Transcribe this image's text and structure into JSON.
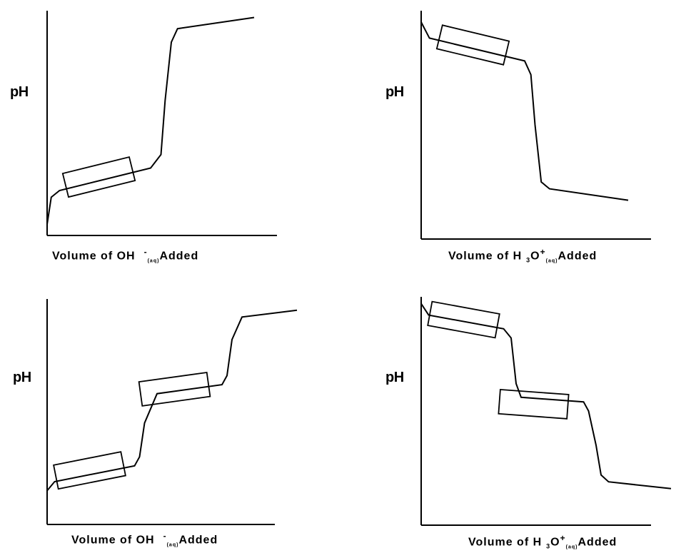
{
  "chart_data": [
    {
      "type": "line",
      "ylabel": "pH",
      "xlabel": {
        "main": "Volume of OH",
        "charge": "-",
        "state": "(aq)",
        "tail": "Added"
      },
      "series": [
        {
          "x": [
            0,
            0.02,
            0.06,
            0.5,
            0.55,
            0.57,
            0.6,
            0.63,
            1.0
          ],
          "y": [
            0.05,
            0.17,
            0.2,
            0.3,
            0.36,
            0.6,
            0.86,
            0.92,
            0.97
          ]
        }
      ],
      "buffer_regions": [
        {
          "x_center": 0.25,
          "y_center": 0.26
        }
      ]
    },
    {
      "type": "line",
      "ylabel": "pH",
      "xlabel": {
        "main": "Volume of H",
        "sub": "3",
        "o": "O",
        "charge": "+",
        "state": "(aq)",
        "tail": "Added"
      },
      "series": [
        {
          "x": [
            0,
            0.04,
            0.5,
            0.53,
            0.55,
            0.58,
            0.62,
            1.0
          ],
          "y": [
            0.95,
            0.88,
            0.78,
            0.72,
            0.5,
            0.25,
            0.22,
            0.17
          ]
        }
      ],
      "buffer_regions": [
        {
          "x_center": 0.25,
          "y_center": 0.85
        }
      ]
    },
    {
      "type": "line",
      "ylabel": "pH",
      "xlabel": {
        "main": "Volume of OH",
        "charge": "-",
        "state": "(aq)",
        "tail": "Added"
      },
      "series": [
        {
          "x": [
            0,
            0.03,
            0.35,
            0.37,
            0.39,
            0.44,
            0.7,
            0.72,
            0.74,
            0.78,
            1.0
          ],
          "y": [
            0.15,
            0.19,
            0.26,
            0.3,
            0.45,
            0.58,
            0.62,
            0.66,
            0.82,
            0.92,
            0.95
          ]
        }
      ],
      "buffer_regions": [
        {
          "x_center": 0.17,
          "y_center": 0.24
        },
        {
          "x_center": 0.51,
          "y_center": 0.6
        }
      ]
    },
    {
      "type": "line",
      "ylabel": "pH",
      "xlabel": {
        "main": "Volume of H",
        "sub": "3",
        "o": "O",
        "charge": "+",
        "state": "(aq)",
        "tail": "Added"
      },
      "series": [
        {
          "x": [
            0,
            0.03,
            0.33,
            0.36,
            0.38,
            0.4,
            0.65,
            0.67,
            0.7,
            0.72,
            0.75,
            1.0
          ],
          "y": [
            0.97,
            0.92,
            0.86,
            0.82,
            0.62,
            0.56,
            0.54,
            0.5,
            0.35,
            0.22,
            0.19,
            0.16
          ]
        }
      ],
      "buffer_regions": [
        {
          "x_center": 0.17,
          "y_center": 0.9
        },
        {
          "x_center": 0.45,
          "y_center": 0.53
        }
      ]
    }
  ]
}
